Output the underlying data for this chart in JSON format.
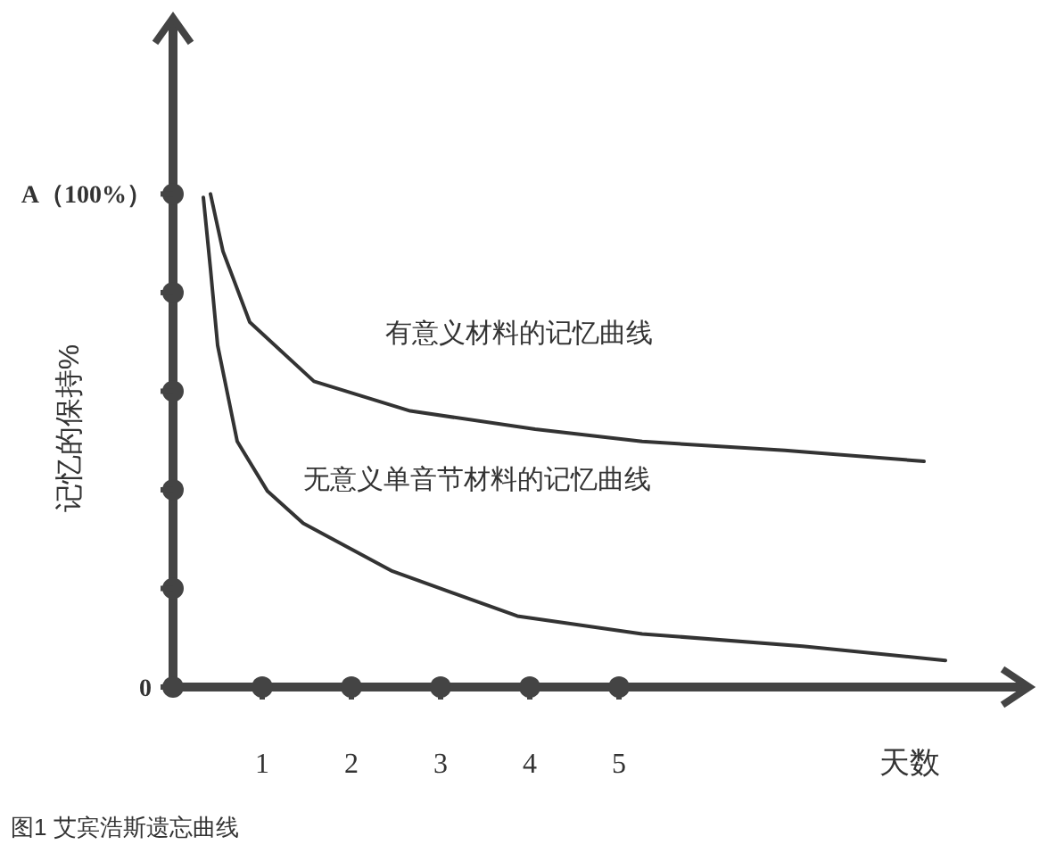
{
  "chart_data": {
    "type": "line",
    "xlabel": "天数",
    "ylabel": "记忆的保持%",
    "xlim": [
      0,
      9.6
    ],
    "ylim": [
      0,
      135
    ],
    "xticks": [
      1,
      2,
      3,
      4,
      5
    ],
    "yticks": [
      0,
      {
        "value": 20,
        "label": null
      },
      {
        "value": 40,
        "label": null
      },
      {
        "value": 60,
        "label": null
      },
      {
        "value": 80,
        "label": null
      },
      {
        "value": 100,
        "label": "A（100%）"
      }
    ],
    "grid": false,
    "line_style": "solid",
    "marker": "none",
    "annotations": [
      "图1 艾宾浩斯遗忘曲线"
    ],
    "series": [
      {
        "name": "有意义材料的记忆曲线",
        "color": "#333333",
        "x": [
          0.42,
          0.56,
          0.86,
          1.58,
          2.66,
          4.06,
          5.26,
          6.86,
          8.42
        ],
        "values": [
          100,
          88.4,
          74,
          62,
          56,
          52.3,
          49.8,
          48,
          45.8
        ]
      },
      {
        "name": "无意义单音节材料的记忆曲线",
        "color": "#333333",
        "x": [
          0.34,
          0.42,
          0.5,
          0.72,
          1.06,
          1.46,
          2.46,
          3.86,
          5.26,
          7.06,
          8.66
        ],
        "values": [
          99.3,
          84.8,
          69.3,
          49.8,
          39.7,
          33.2,
          23.5,
          14.4,
          10.8,
          8.3,
          5.4
        ]
      }
    ]
  }
}
